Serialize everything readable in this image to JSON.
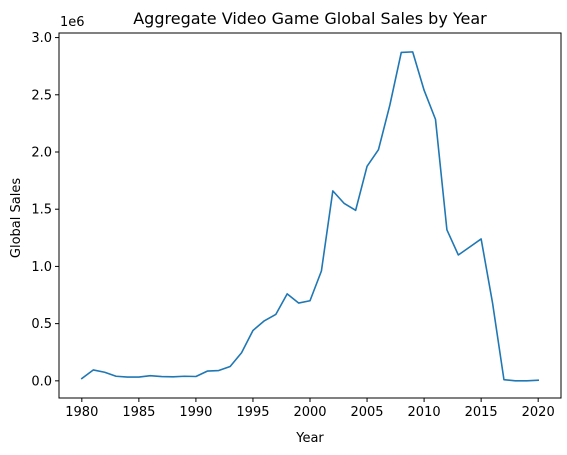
{
  "chart_data": {
    "type": "line",
    "title": "Aggregate Video Game Global Sales by Year",
    "xlabel": "Year",
    "ylabel": "Global Sales",
    "offset_label": "1e6",
    "xlim": [
      1978,
      2022
    ],
    "ylim": [
      -0.15,
      3.04
    ],
    "y_scale_multiplier": 1000000,
    "x_ticks": [
      1980,
      1985,
      1990,
      1995,
      2000,
      2005,
      2010,
      2015,
      2020
    ],
    "y_ticks": [
      0.0,
      0.5,
      1.0,
      1.5,
      2.0,
      2.5,
      3.0
    ],
    "y_tick_labels": [
      "0.0",
      "0.5",
      "1.0",
      "1.5",
      "2.0",
      "2.5",
      "3.0"
    ],
    "grid": false,
    "series": [
      {
        "color": "#1f77b4",
        "x": [
          1980,
          1981,
          1982,
          1983,
          1984,
          1985,
          1986,
          1987,
          1988,
          1989,
          1990,
          1991,
          1992,
          1993,
          1994,
          1995,
          1996,
          1997,
          1998,
          1999,
          2000,
          2001,
          2002,
          2003,
          2004,
          2005,
          2006,
          2007,
          2008,
          2009,
          2010,
          2011,
          2012,
          2013,
          2014,
          2015,
          2016,
          2017,
          2018,
          2019,
          2020
        ],
        "y": [
          0.02,
          0.095,
          0.075,
          0.04,
          0.033,
          0.033,
          0.045,
          0.037,
          0.035,
          0.04,
          0.038,
          0.085,
          0.09,
          0.125,
          0.245,
          0.44,
          0.525,
          0.58,
          0.76,
          0.68,
          0.7,
          0.96,
          1.66,
          1.55,
          1.49,
          1.875,
          2.02,
          2.41,
          2.87,
          2.875,
          2.54,
          2.285,
          1.32,
          1.1,
          1.17,
          1.24,
          0.68,
          0.01,
          0.0,
          0.0,
          0.005
        ]
      }
    ]
  }
}
